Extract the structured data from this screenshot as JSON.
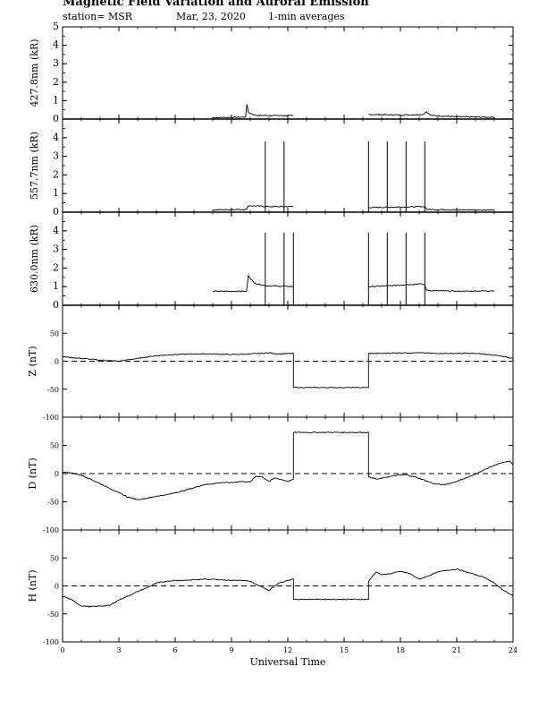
{
  "header": {
    "title": "Magnetic Field Variation and Auroral Emission",
    "station": "station= MSR",
    "date": "Mar, 23, 2020",
    "averaging": "1-min averages"
  },
  "colors": {
    "line": "#000000",
    "background": "#ffffff"
  },
  "chart_data": {
    "type": "line",
    "xlabel": "Universal Time",
    "xlim": [
      0,
      24
    ],
    "xticks": [
      0,
      3,
      6,
      9,
      12,
      15,
      18,
      21,
      24
    ],
    "panels": [
      {
        "id": "p4278",
        "ylabel": "427.8nm (kR)",
        "ylim": [
          0,
          5
        ],
        "yticks": [
          0,
          1,
          2,
          3,
          4,
          5
        ],
        "zero_dashed": false,
        "gaps": [
          [
            12.3,
            16.3
          ]
        ],
        "series": [
          {
            "x": [
              8.0,
              9.5,
              9.75,
              9.82,
              9.9,
              10.3,
              11.0,
              12.3
            ],
            "y": [
              0.08,
              0.1,
              0.12,
              0.8,
              0.35,
              0.2,
              0.2,
              0.18
            ]
          },
          {
            "x": [
              16.3,
              18.0,
              19.2,
              19.4,
              19.6,
              21.0,
              23.0
            ],
            "y": [
              0.25,
              0.22,
              0.25,
              0.4,
              0.2,
              0.12,
              0.1
            ]
          }
        ]
      },
      {
        "id": "p5577",
        "ylabel": "557.7nm (kR)",
        "ylim": [
          0,
          5
        ],
        "yticks": [
          0,
          1,
          2,
          3,
          4
        ],
        "zero_dashed": false,
        "gaps": [
          [
            12.3,
            16.3
          ]
        ],
        "spikes": [
          10.8,
          11.8,
          16.3,
          17.3,
          18.3,
          19.3
        ],
        "spike_value": 3.8,
        "series": [
          {
            "x": [
              8.0,
              9.8,
              9.9,
              11.0,
              12.3
            ],
            "y": [
              0.12,
              0.15,
              0.35,
              0.3,
              0.3
            ]
          },
          {
            "x": [
              16.3,
              19.3,
              19.4,
              21.0,
              23.0
            ],
            "y": [
              0.25,
              0.3,
              0.15,
              0.12,
              0.12
            ]
          }
        ]
      },
      {
        "id": "p6300",
        "ylabel": "630.0nm (kR)",
        "ylim": [
          0,
          5
        ],
        "yticks": [
          0,
          1,
          2,
          3,
          4
        ],
        "zero_dashed": false,
        "gaps": [
          [
            12.3,
            16.3
          ]
        ],
        "spikes": [
          10.8,
          11.8,
          12.3,
          16.3,
          17.3,
          18.3,
          19.3
        ],
        "spike_value": 3.9,
        "series": [
          {
            "x": [
              8.0,
              9.8,
              9.9,
              10.2,
              10.8,
              12.3
            ],
            "y": [
              0.75,
              0.75,
              1.6,
              1.2,
              1.05,
              1.0
            ]
          },
          {
            "x": [
              16.3,
              17.5,
              19.0,
              19.3,
              19.4,
              21.0,
              23.0
            ],
            "y": [
              1.0,
              1.05,
              1.15,
              1.1,
              0.8,
              0.75,
              0.78
            ]
          }
        ]
      },
      {
        "id": "pZ",
        "ylabel": "Z (nT)",
        "ylim": [
          -100,
          100
        ],
        "yticks": [
          -100,
          -50,
          0,
          50
        ],
        "zero_dashed": true,
        "series": [
          {
            "x": [
              0,
              1,
              2,
              3,
              4,
              5,
              6,
              7,
              8,
              9,
              10,
              11,
              11.5,
              12.3,
              12.3,
              16.3,
              16.3,
              17,
              18,
              19,
              20,
              21,
              22,
              23,
              24
            ],
            "y": [
              8,
              5,
              2,
              0,
              5,
              10,
              12,
              13,
              13,
              12,
              13,
              15,
              13,
              14,
              -47,
              -47,
              14,
              14,
              15,
              15,
              14,
              14,
              14,
              11,
              5
            ]
          }
        ]
      },
      {
        "id": "pD",
        "ylabel": "D (nT)",
        "ylim": [
          -100,
          100
        ],
        "yticks": [
          -100,
          -50,
          0,
          50
        ],
        "zero_dashed": true,
        "series": [
          {
            "x": [
              0,
              0.5,
              1.0,
              1.5,
              2.0,
              2.5,
              3.0,
              3.5,
              4.0,
              4.5,
              5.0,
              5.5,
              6.0,
              6.5,
              7.0,
              7.5,
              8.0,
              8.5,
              9.0,
              9.5,
              10.0,
              10.3,
              10.6,
              11.0,
              11.3,
              11.6,
              12.0,
              12.3,
              12.3,
              16.3,
              16.3,
              16.8,
              17.3,
              17.8,
              18.3,
              18.8,
              19.3,
              19.8,
              20.3,
              20.8,
              21.3,
              21.8,
              22.3,
              22.8,
              23.3,
              23.8,
              24.0
            ],
            "y": [
              3,
              1,
              -3,
              -10,
              -18,
              -26,
              -34,
              -42,
              -46,
              -44,
              -40,
              -38,
              -34,
              -30,
              -25,
              -20,
              -18,
              -16,
              -16,
              -14,
              -15,
              -5,
              -5,
              -14,
              -8,
              -10,
              -14,
              -10,
              73,
              73,
              -6,
              -10,
              -6,
              -3,
              -2,
              -6,
              -12,
              -18,
              -20,
              -16,
              -10,
              -4,
              4,
              12,
              18,
              22,
              16
            ]
          }
        ]
      },
      {
        "id": "pH",
        "ylabel": "H (nT)",
        "ylim": [
          -100,
          100
        ],
        "yticks": [
          -100,
          -50,
          0,
          50
        ],
        "zero_dashed": true,
        "series": [
          {
            "x": [
              0,
              0.5,
              1.0,
              1.5,
              2.0,
              2.5,
              3.0,
              3.5,
              4.0,
              4.5,
              5.0,
              5.5,
              6.0,
              6.5,
              7.0,
              7.5,
              8.0,
              8.5,
              9.0,
              9.5,
              10.0,
              10.5,
              11.0,
              11.5,
              12.0,
              12.3,
              12.3,
              16.3,
              16.3,
              16.7,
              17.0,
              17.5,
              18.0,
              18.5,
              19.0,
              19.5,
              20.0,
              20.5,
              21.0,
              21.5,
              22.0,
              22.5,
              23.0,
              23.5,
              24.0
            ],
            "y": [
              -18,
              -25,
              -36,
              -37,
              -36,
              -35,
              -25,
              -18,
              -10,
              -3,
              5,
              8,
              10,
              10,
              11,
              12,
              12,
              11,
              10,
              10,
              8,
              0,
              -8,
              5,
              10,
              12,
              -24,
              -24,
              8,
              25,
              20,
              22,
              26,
              22,
              12,
              18,
              25,
              28,
              30,
              25,
              20,
              15,
              5,
              -8,
              -18
            ]
          }
        ]
      }
    ]
  }
}
